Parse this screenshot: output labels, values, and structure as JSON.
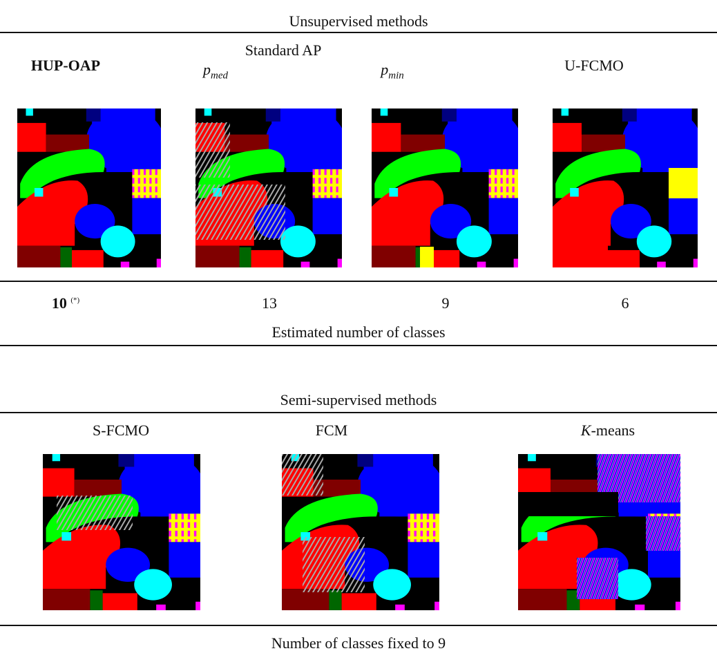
{
  "unsupervised": {
    "title": "Unsupervised methods",
    "columns": [
      {
        "label": "HUP-OAP"
      },
      {
        "symbol": "p",
        "subscript": "med"
      },
      {
        "symbol": "p",
        "subscript": "min"
      },
      {
        "label": "U-FCMO"
      }
    ],
    "group_label": "Standard AP",
    "counts": [
      {
        "value": "10",
        "note": "(*)"
      },
      {
        "value": "13"
      },
      {
        "value": "9"
      },
      {
        "value": "6"
      }
    ],
    "caption": "Estimated number of classes"
  },
  "semi_supervised": {
    "title": "Semi-supervised methods",
    "columns": [
      {
        "label": "S-FCMO"
      },
      {
        "label": "FCM"
      },
      {
        "prefix": "K",
        "rest": "-means"
      }
    ],
    "caption": "Number of classes fixed to 9"
  }
}
